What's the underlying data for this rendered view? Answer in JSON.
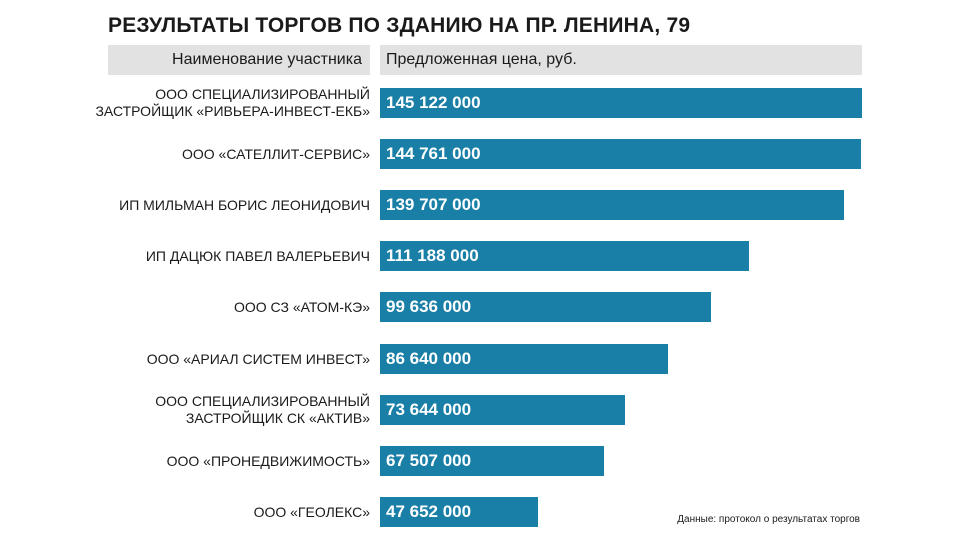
{
  "title": "РЕЗУЛЬТАТЫ ТОРГОВ ПО ЗДАНИЮ НА ПР. ЛЕНИНА, 79",
  "headers": {
    "participant": "Наименование участника",
    "price": "Предложенная цена, руб."
  },
  "source": "Данные: протокол о результатах торгов",
  "colors": {
    "bar": "#1a7fa6",
    "header_bg": "#e2e2e2"
  },
  "chart_data": {
    "type": "bar",
    "orientation": "horizontal",
    "title": "РЕЗУЛЬТАТЫ ТОРГОВ ПО ЗДАНИЮ НА ПР. ЛЕНИНА, 79",
    "xlabel": "Предложенная цена, руб.",
    "ylabel": "Наименование участника",
    "xlim": [
      0,
      145122000
    ],
    "categories": [
      [
        "ООО СПЕЦИАЛИЗИРОВАННЫЙ",
        "ЗАСТРОЙЩИК «РИВЬЕРА-ИНВЕСТ-ЕКБ»"
      ],
      [
        "ООО «САТЕЛЛИТ-СЕРВИС»"
      ],
      [
        "ИП МИЛЬМАН БОРИС ЛЕОНИДОВИЧ"
      ],
      [
        "ИП ДАЦЮК ПАВЕЛ ВАЛЕРЬЕВИЧ"
      ],
      [
        "ООО СЗ «АТОМ-КЭ»"
      ],
      [
        "ООО «АРИАЛ СИСТЕМ ИНВЕСТ»"
      ],
      [
        "ООО СПЕЦИАЛИЗИРОВАННЫЙ",
        "ЗАСТРОЙЩИК СК «АКТИВ»"
      ],
      [
        "ООО «ПРОНЕДВИЖИМОСТЬ»"
      ],
      [
        "ООО «ГЕОЛЕКС»"
      ]
    ],
    "values": [
      145122000,
      144761000,
      139707000,
      111188000,
      99636000,
      86640000,
      73644000,
      67507000,
      47652000
    ],
    "value_labels": [
      "145 122 000",
      "144 761 000",
      "139 707 000",
      "111 188 000",
      "99 636 000",
      "86 640 000",
      "73 644 000",
      "67 507 000",
      "47 652 000"
    ]
  }
}
